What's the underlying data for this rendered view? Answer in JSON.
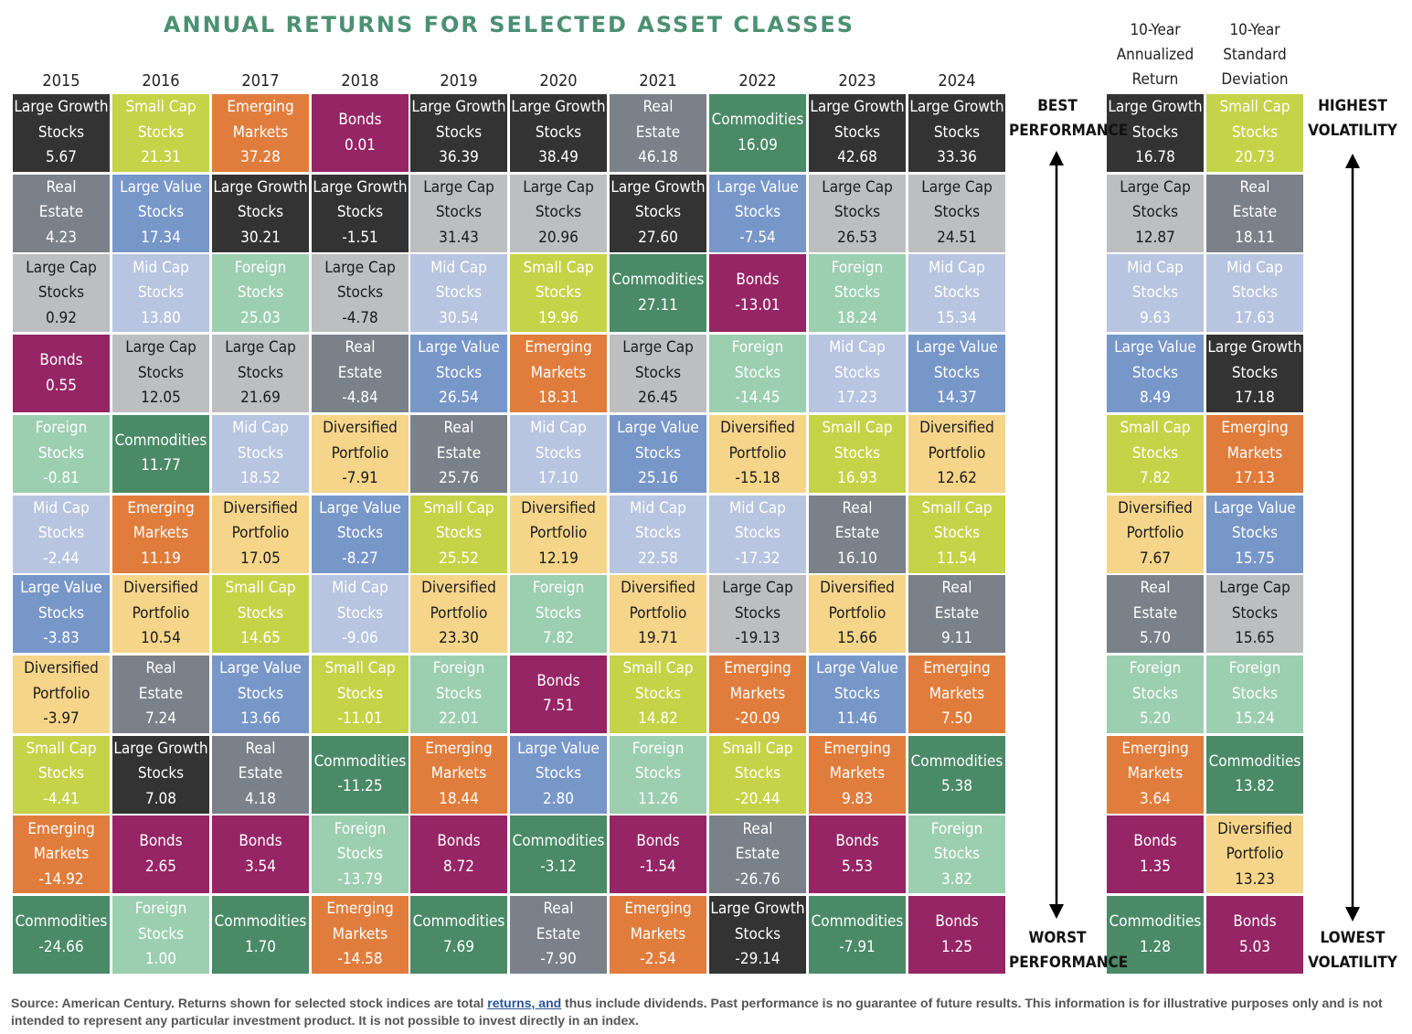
{
  "title": "ANNUAL RETURNS FOR SELECTED ASSET CLASSES",
  "colors": {
    "Large Growth Stocks": "#333333",
    "Small Cap Stocks": "#c5d348",
    "Emerging Markets": "#e07d3c",
    "Bonds": "#952565",
    "Real Estate": "#7a8189",
    "Large Value Stocks": "#7897c9",
    "Large Cap Stocks": "#bcbec0",
    "Mid Cap Stocks": "#b8c5e0",
    "Foreign Stocks": "#9ccfb0",
    "Commodities": "#4a8a66",
    "Diversified Portfolio": "#f5d58a"
  },
  "dark_text_assets": [
    "Large Cap Stocks",
    "Diversified Portfolio"
  ],
  "side_labels": {
    "best": "BEST\nPERFORMANCE",
    "worst": "WORST\nPERFORMANCE",
    "highest": "HIGHEST\nVOLATILITY",
    "lowest": "LOWEST\nVOLATILITY"
  },
  "chart_data": {
    "type": "table",
    "title": "ANNUAL RETURNS FOR SELECTED ASSET CLASSES",
    "years": [
      "2015",
      "2016",
      "2017",
      "2018",
      "2019",
      "2020",
      "2021",
      "2022",
      "2023",
      "2024"
    ],
    "columns": [
      [
        [
          "Large Growth Stocks",
          "5.67"
        ],
        [
          "Real Estate",
          "4.23"
        ],
        [
          "Large Cap Stocks",
          "0.92"
        ],
        [
          "Bonds",
          "0.55"
        ],
        [
          "Foreign Stocks",
          "-0.81"
        ],
        [
          "Mid Cap Stocks",
          "-2.44"
        ],
        [
          "Large Value Stocks",
          "-3.83"
        ],
        [
          "Diversified Portfolio",
          "-3.97"
        ],
        [
          "Small Cap Stocks",
          "-4.41"
        ],
        [
          "Emerging Markets",
          "-14.92"
        ],
        [
          "Commodities",
          "-24.66"
        ]
      ],
      [
        [
          "Small Cap Stocks",
          "21.31"
        ],
        [
          "Large Value Stocks",
          "17.34"
        ],
        [
          "Mid Cap Stocks",
          "13.80"
        ],
        [
          "Large Cap Stocks",
          "12.05"
        ],
        [
          "Commodities",
          "11.77"
        ],
        [
          "Emerging Markets",
          "11.19"
        ],
        [
          "Diversified Portfolio",
          "10.54"
        ],
        [
          "Real Estate",
          "7.24"
        ],
        [
          "Large Growth Stocks",
          "7.08"
        ],
        [
          "Bonds",
          "2.65"
        ],
        [
          "Foreign Stocks",
          "1.00"
        ]
      ],
      [
        [
          "Emerging Markets",
          "37.28"
        ],
        [
          "Large Growth Stocks",
          "30.21"
        ],
        [
          "Foreign Stocks",
          "25.03"
        ],
        [
          "Large Cap Stocks",
          "21.69"
        ],
        [
          "Mid Cap Stocks",
          "18.52"
        ],
        [
          "Diversified Portfolio",
          "17.05"
        ],
        [
          "Small Cap Stocks",
          "14.65"
        ],
        [
          "Large Value Stocks",
          "13.66"
        ],
        [
          "Real Estate",
          "4.18"
        ],
        [
          "Bonds",
          "3.54"
        ],
        [
          "Commodities",
          "1.70"
        ]
      ],
      [
        [
          "Bonds",
          "0.01"
        ],
        [
          "Large Growth Stocks",
          "-1.51"
        ],
        [
          "Large Cap Stocks",
          "-4.78"
        ],
        [
          "Real Estate",
          "-4.84"
        ],
        [
          "Diversified Portfolio",
          "-7.91"
        ],
        [
          "Large Value Stocks",
          "-8.27"
        ],
        [
          "Mid Cap Stocks",
          "-9.06"
        ],
        [
          "Small Cap Stocks",
          "-11.01"
        ],
        [
          "Commodities",
          "-11.25"
        ],
        [
          "Foreign Stocks",
          "-13.79"
        ],
        [
          "Emerging Markets",
          "-14.58"
        ]
      ],
      [
        [
          "Large Growth Stocks",
          "36.39"
        ],
        [
          "Large Cap Stocks",
          "31.43"
        ],
        [
          "Mid Cap Stocks",
          "30.54"
        ],
        [
          "Large Value Stocks",
          "26.54"
        ],
        [
          "Real Estate",
          "25.76"
        ],
        [
          "Small Cap Stocks",
          "25.52"
        ],
        [
          "Diversified Portfolio",
          "23.30"
        ],
        [
          "Foreign Stocks",
          "22.01"
        ],
        [
          "Emerging Markets",
          "18.44"
        ],
        [
          "Bonds",
          "8.72"
        ],
        [
          "Commodities",
          "7.69"
        ]
      ],
      [
        [
          "Large Growth Stocks",
          "38.49"
        ],
        [
          "Large Cap Stocks",
          "20.96"
        ],
        [
          "Small Cap Stocks",
          "19.96"
        ],
        [
          "Emerging Markets",
          "18.31"
        ],
        [
          "Mid Cap Stocks",
          "17.10"
        ],
        [
          "Diversified Portfolio",
          "12.19"
        ],
        [
          "Foreign Stocks",
          "7.82"
        ],
        [
          "Bonds",
          "7.51"
        ],
        [
          "Large Value Stocks",
          "2.80"
        ],
        [
          "Commodities",
          "-3.12"
        ],
        [
          "Real Estate",
          "-7.90"
        ]
      ],
      [
        [
          "Real Estate",
          "46.18"
        ],
        [
          "Large Growth Stocks",
          "27.60"
        ],
        [
          "Commodities",
          "27.11"
        ],
        [
          "Large Cap Stocks",
          "26.45"
        ],
        [
          "Large Value Stocks",
          "25.16"
        ],
        [
          "Mid Cap Stocks",
          "22.58"
        ],
        [
          "Diversified Portfolio",
          "19.71"
        ],
        [
          "Small Cap Stocks",
          "14.82"
        ],
        [
          "Foreign Stocks",
          "11.26"
        ],
        [
          "Bonds",
          "-1.54"
        ],
        [
          "Emerging Markets",
          "-2.54"
        ]
      ],
      [
        [
          "Commodities",
          "16.09"
        ],
        [
          "Large Value Stocks",
          "-7.54"
        ],
        [
          "Bonds",
          "-13.01"
        ],
        [
          "Foreign Stocks",
          "-14.45"
        ],
        [
          "Diversified Portfolio",
          "-15.18"
        ],
        [
          "Mid Cap Stocks",
          "-17.32"
        ],
        [
          "Large Cap Stocks",
          "-19.13"
        ],
        [
          "Emerging Markets",
          "-20.09"
        ],
        [
          "Small Cap Stocks",
          "-20.44"
        ],
        [
          "Real Estate",
          "-26.76"
        ],
        [
          "Large Growth Stocks",
          "-29.14"
        ]
      ],
      [
        [
          "Large Growth Stocks",
          "42.68"
        ],
        [
          "Large Cap Stocks",
          "26.53"
        ],
        [
          "Foreign Stocks",
          "18.24"
        ],
        [
          "Mid Cap Stocks",
          "17.23"
        ],
        [
          "Small Cap Stocks",
          "16.93"
        ],
        [
          "Real Estate",
          "16.10"
        ],
        [
          "Diversified Portfolio",
          "15.66"
        ],
        [
          "Large Value Stocks",
          "11.46"
        ],
        [
          "Emerging Markets",
          "9.83"
        ],
        [
          "Bonds",
          "5.53"
        ],
        [
          "Commodities",
          "-7.91"
        ]
      ],
      [
        [
          "Large Growth Stocks",
          "33.36"
        ],
        [
          "Large Cap Stocks",
          "24.51"
        ],
        [
          "Mid Cap Stocks",
          "15.34"
        ],
        [
          "Large Value Stocks",
          "14.37"
        ],
        [
          "Diversified Portfolio",
          "12.62"
        ],
        [
          "Small Cap Stocks",
          "11.54"
        ],
        [
          "Real Estate",
          "9.11"
        ],
        [
          "Emerging Markets",
          "7.50"
        ],
        [
          "Commodities",
          "5.38"
        ],
        [
          "Foreign Stocks",
          "3.82"
        ],
        [
          "Bonds",
          "1.25"
        ]
      ]
    ],
    "summary": [
      {
        "label": "10-Year\nAnnualized\nReturn",
        "cells": [
          [
            "Large Growth Stocks",
            "16.78"
          ],
          [
            "Large Cap Stocks",
            "12.87"
          ],
          [
            "Mid Cap Stocks",
            "9.63"
          ],
          [
            "Large Value Stocks",
            "8.49"
          ],
          [
            "Small Cap Stocks",
            "7.82"
          ],
          [
            "Diversified Portfolio",
            "7.67"
          ],
          [
            "Real Estate",
            "5.70"
          ],
          [
            "Foreign Stocks",
            "5.20"
          ],
          [
            "Emerging Markets",
            "3.64"
          ],
          [
            "Bonds",
            "1.35"
          ],
          [
            "Commodities",
            "1.28"
          ]
        ]
      },
      {
        "label": "10-Year\nStandard\nDeviation",
        "cells": [
          [
            "Small Cap Stocks",
            "20.73"
          ],
          [
            "Real Estate",
            "18.11"
          ],
          [
            "Mid Cap Stocks",
            "17.63"
          ],
          [
            "Large Growth Stocks",
            "17.18"
          ],
          [
            "Emerging Markets",
            "17.13"
          ],
          [
            "Large Value Stocks",
            "15.75"
          ],
          [
            "Large Cap Stocks",
            "15.65"
          ],
          [
            "Foreign Stocks",
            "15.24"
          ],
          [
            "Commodities",
            "13.82"
          ],
          [
            "Diversified Portfolio",
            "13.23"
          ],
          [
            "Bonds",
            "5.03"
          ]
        ]
      }
    ]
  },
  "source": {
    "prefix": "Source: American Century. Returns shown for selected stock indices are total ",
    "link": "returns, and",
    "suffix": " thus include dividends. Past performance is no guarantee of future results. This information is for illustrative purposes only and is not intended to represent any particular investment product. It is not possible to invest directly in an index."
  }
}
